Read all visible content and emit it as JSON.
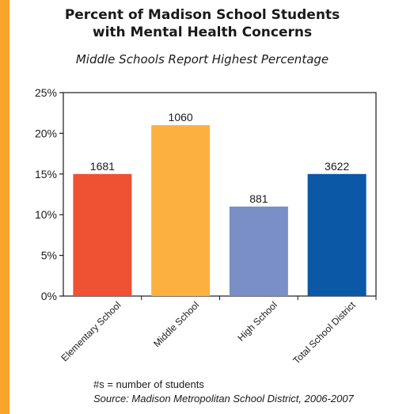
{
  "header": {
    "title_line1": "Percent of Madison School Students",
    "title_line2": "with Mental Health Concerns",
    "subtitle": "Middle Schools Report Highest Percentage"
  },
  "chart_data": {
    "type": "bar",
    "categories": [
      "Elementary School",
      "Middle School",
      "High School",
      "Total School District"
    ],
    "values": [
      15,
      21,
      11,
      15
    ],
    "data_labels": [
      "1681",
      "1060",
      "881",
      "3622"
    ],
    "bar_colors": [
      "#ef5133",
      "#fbb040",
      "#7b8fc7",
      "#0a58a6"
    ],
    "ylim": [
      0,
      25
    ],
    "yticks": [
      0,
      5,
      10,
      15,
      20,
      25
    ],
    "ytick_labels": [
      "0%",
      "5%",
      "10%",
      "15%",
      "20%",
      "25%"
    ],
    "grid": false
  },
  "footer": {
    "note": "#s = number of students",
    "source": "Source: Madison Metropolitan School District, 2006-2007"
  },
  "colors": {
    "accent": "#f9a52b"
  }
}
